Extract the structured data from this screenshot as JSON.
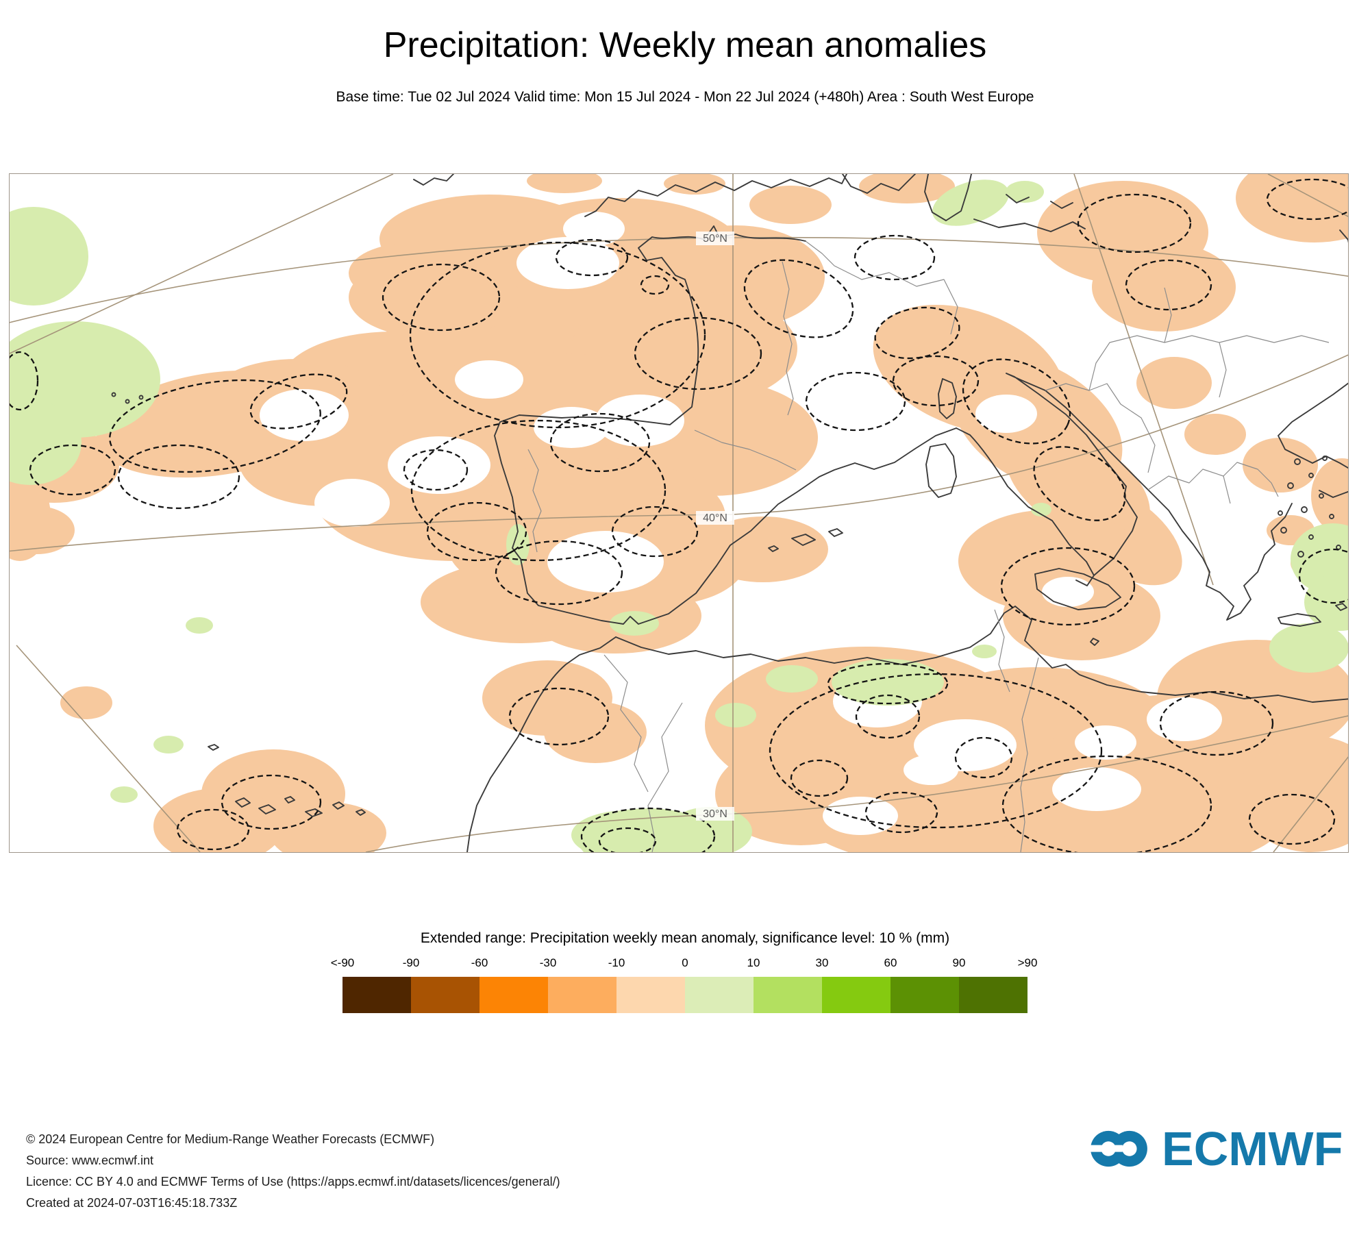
{
  "title": "Precipitation: Weekly mean anomalies",
  "subtitle": "Base time: Tue 02 Jul 2024 Valid time: Mon 15 Jul 2024 - Mon 22 Jul 2024 (+480h) Area : South West Europe",
  "map": {
    "labels": {
      "lat50": "50°N",
      "lat40": "40°N",
      "lat30": "30°N"
    },
    "colors": {
      "negative_anomaly": "#f7c99e",
      "positive_anomaly": "#d7ecae",
      "hole": "#ffffff",
      "coastline": "#3a3a3a",
      "country_border": "#8c8c8c",
      "graticule": "#a5947a",
      "contour": "#141414",
      "frame": "#9e958a"
    }
  },
  "legend": {
    "title": "Extended range: Precipitation weekly mean anomaly, significance level: 10 % (mm)",
    "ticks": [
      "<-90",
      "-90",
      "-60",
      "-30",
      "-10",
      "0",
      "10",
      "30",
      "60",
      "90",
      ">90"
    ],
    "cells": [
      "#4f2600",
      "#a85303",
      "#fc8405",
      "#fdad5e",
      "#fdd7ae",
      "#dcedb7",
      "#b3e060",
      "#85ca10",
      "#5c9104",
      "#4e7202"
    ]
  },
  "footer": {
    "lines": [
      "© 2024 European Centre for Medium-Range Weather Forecasts (ECMWF)",
      "Source: www.ecmwf.int",
      "Licence: CC BY 4.0 and ECMWF Terms of Use (https://apps.ecmwf.int/datasets/licences/general/)",
      "Created at 2024-07-03T16:45:18.733Z"
    ]
  },
  "logo": {
    "text": "ECMWF",
    "color": "#1579ab"
  }
}
